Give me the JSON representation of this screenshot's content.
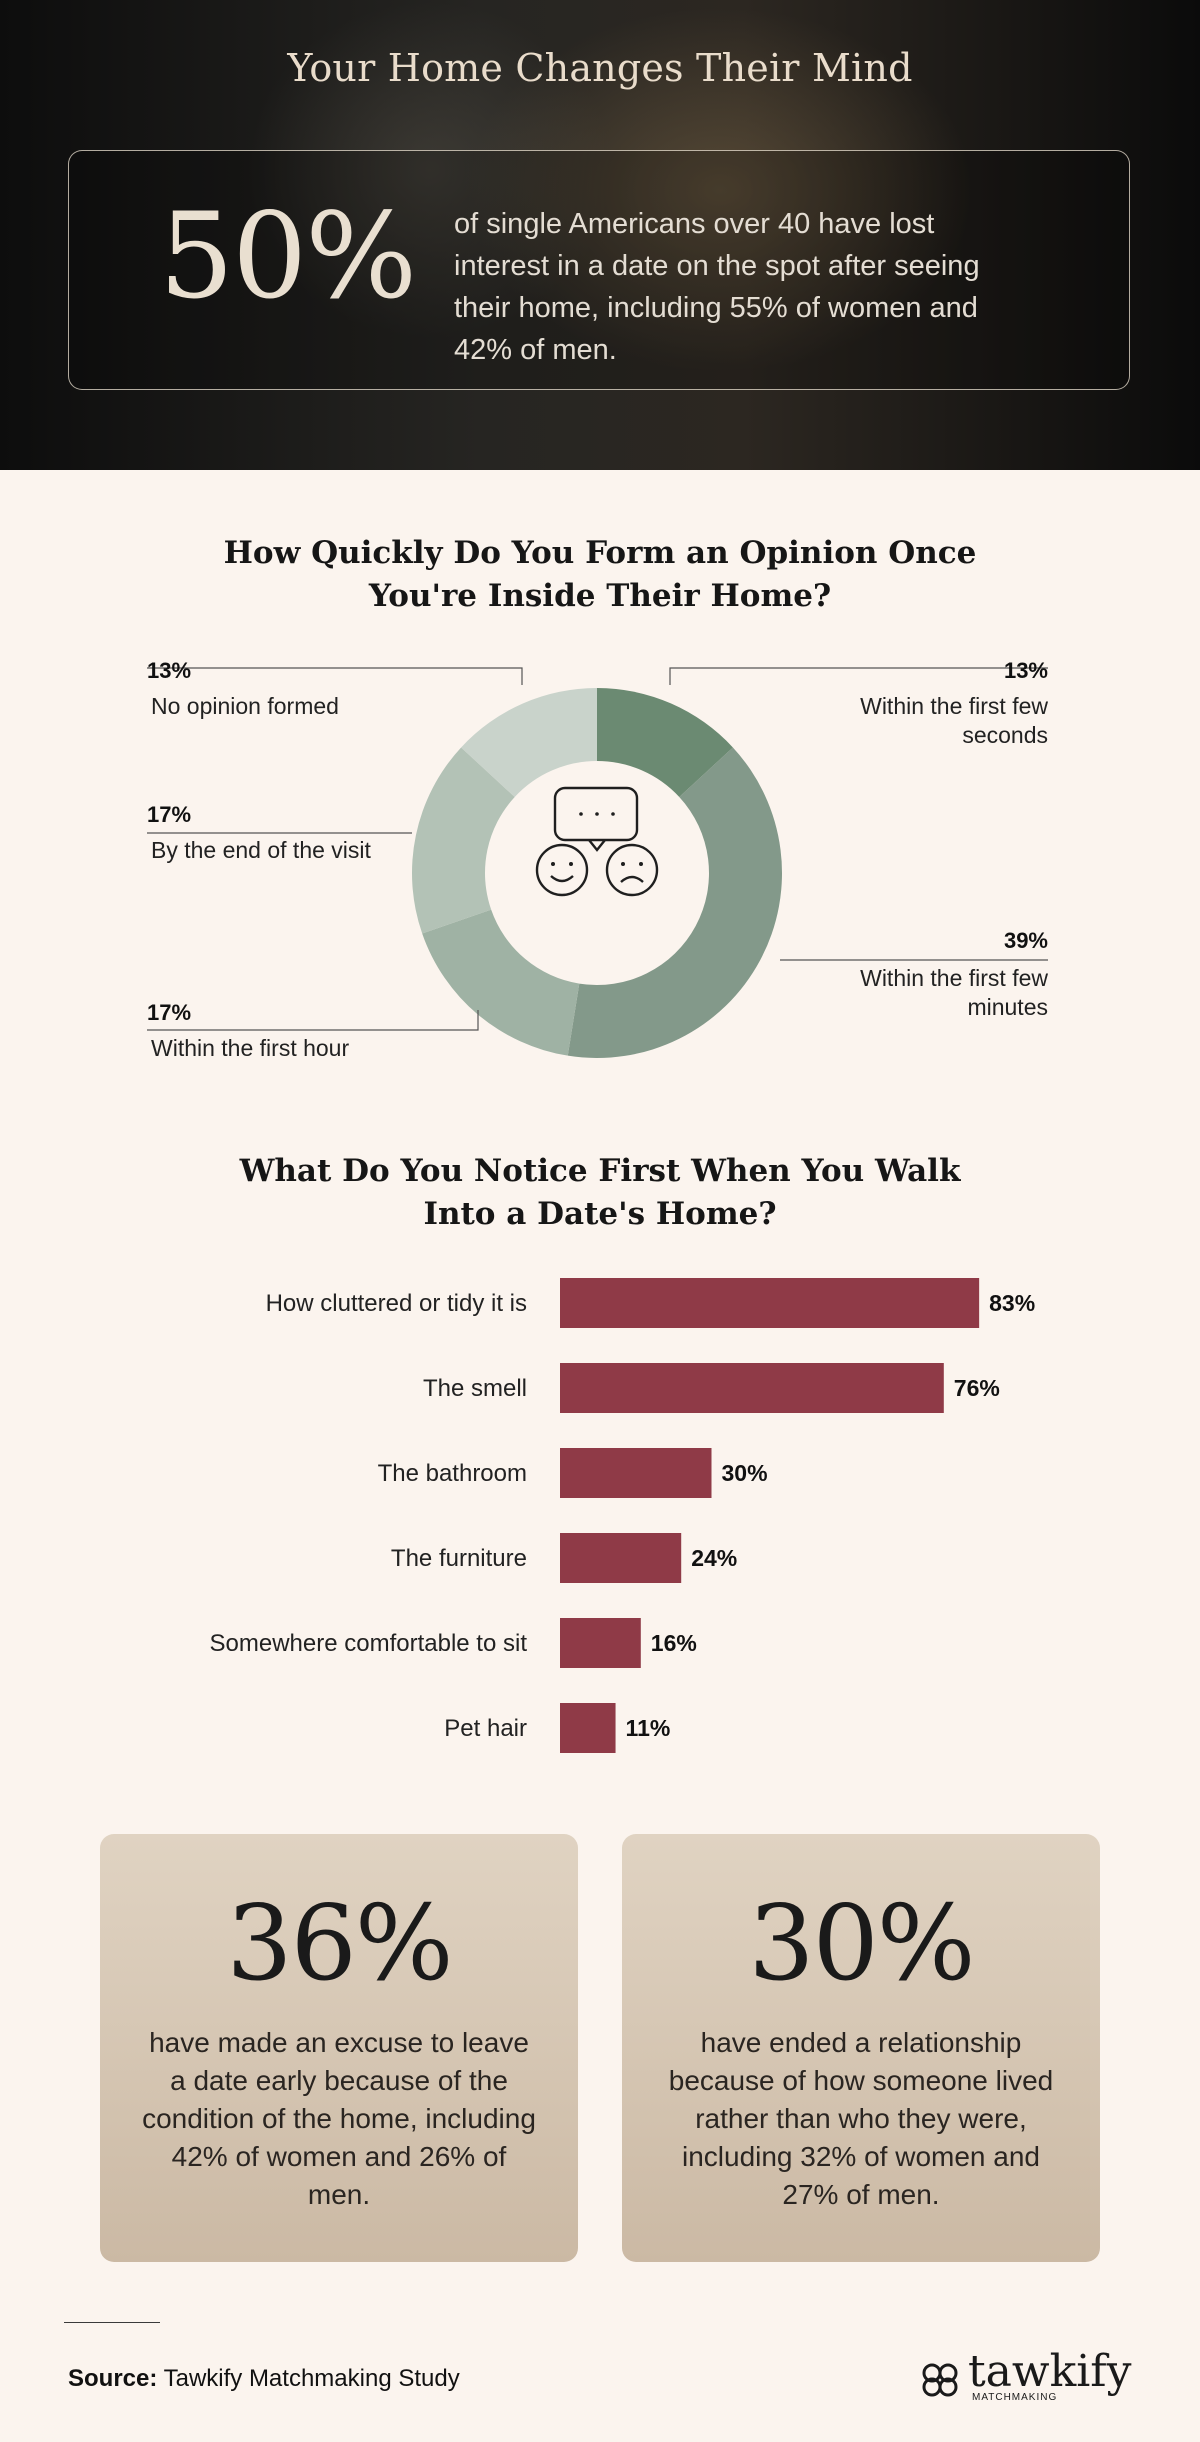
{
  "header": {
    "title": "Your Home Changes Their Mind",
    "stat_value": "50%",
    "stat_text": "of single Americans over 40 have lost interest in a date on the spot after seeing their home, including 55% of women and 42% of men."
  },
  "donut_section": {
    "title_line1": "How Quickly Do You Form an Opinion Once",
    "title_line2": "You're Inside Their Home?"
  },
  "bar_section": {
    "title_line1": "What Do You Notice First When You Walk",
    "title_line2": "Into a Date's Home?"
  },
  "chart_data": [
    {
      "type": "pie",
      "donut": true,
      "title": "How Quickly Do You Form an Opinion Once You're Inside Their Home?",
      "unit": "%",
      "slices": [
        {
          "label": "Within the first few seconds",
          "value": 13,
          "value_label": "13%",
          "color": "#6b8a72"
        },
        {
          "label": "Within the first few minutes",
          "value": 39,
          "value_label": "39%",
          "color": "#83998a"
        },
        {
          "label": "Within the first hour",
          "value": 17,
          "value_label": "17%",
          "color": "#9fb2a4"
        },
        {
          "label": "By the end of the visit",
          "value": 17,
          "value_label": "17%",
          "color": "#b3c2b6"
        },
        {
          "label": "No opinion formed",
          "value": 13,
          "value_label": "13%",
          "color": "#c9d3cb"
        }
      ],
      "center_icon": "chat-and-faces-icon"
    },
    {
      "type": "bar",
      "orientation": "horizontal",
      "title": "What Do You Notice First When You Walk Into a Date's Home?",
      "categories": [
        "How cluttered or tidy it is",
        "The smell",
        "The bathroom",
        "The furniture",
        "Somewhere comfortable to sit",
        "Pet hair"
      ],
      "values": [
        83,
        76,
        30,
        24,
        16,
        11
      ],
      "value_labels": [
        "83%",
        "76%",
        "30%",
        "24%",
        "16%",
        "11%"
      ],
      "xlim": [
        0,
        100
      ],
      "bar_color": "#8f3a47"
    }
  ],
  "cards": [
    {
      "value": "36%",
      "text": "have made an excuse to leave a date early because of the condition of the home, including 42% of women and 26% of men."
    },
    {
      "value": "30%",
      "text": "have ended a relationship because of how someone lived rather than who they were, including 32% of women and 27% of men."
    }
  ],
  "footer": {
    "source_label": "Source:",
    "source_text": "Tawkify Matchmaking Study",
    "logo_word": "tawkify",
    "logo_sub": "MATCHMAKING"
  }
}
